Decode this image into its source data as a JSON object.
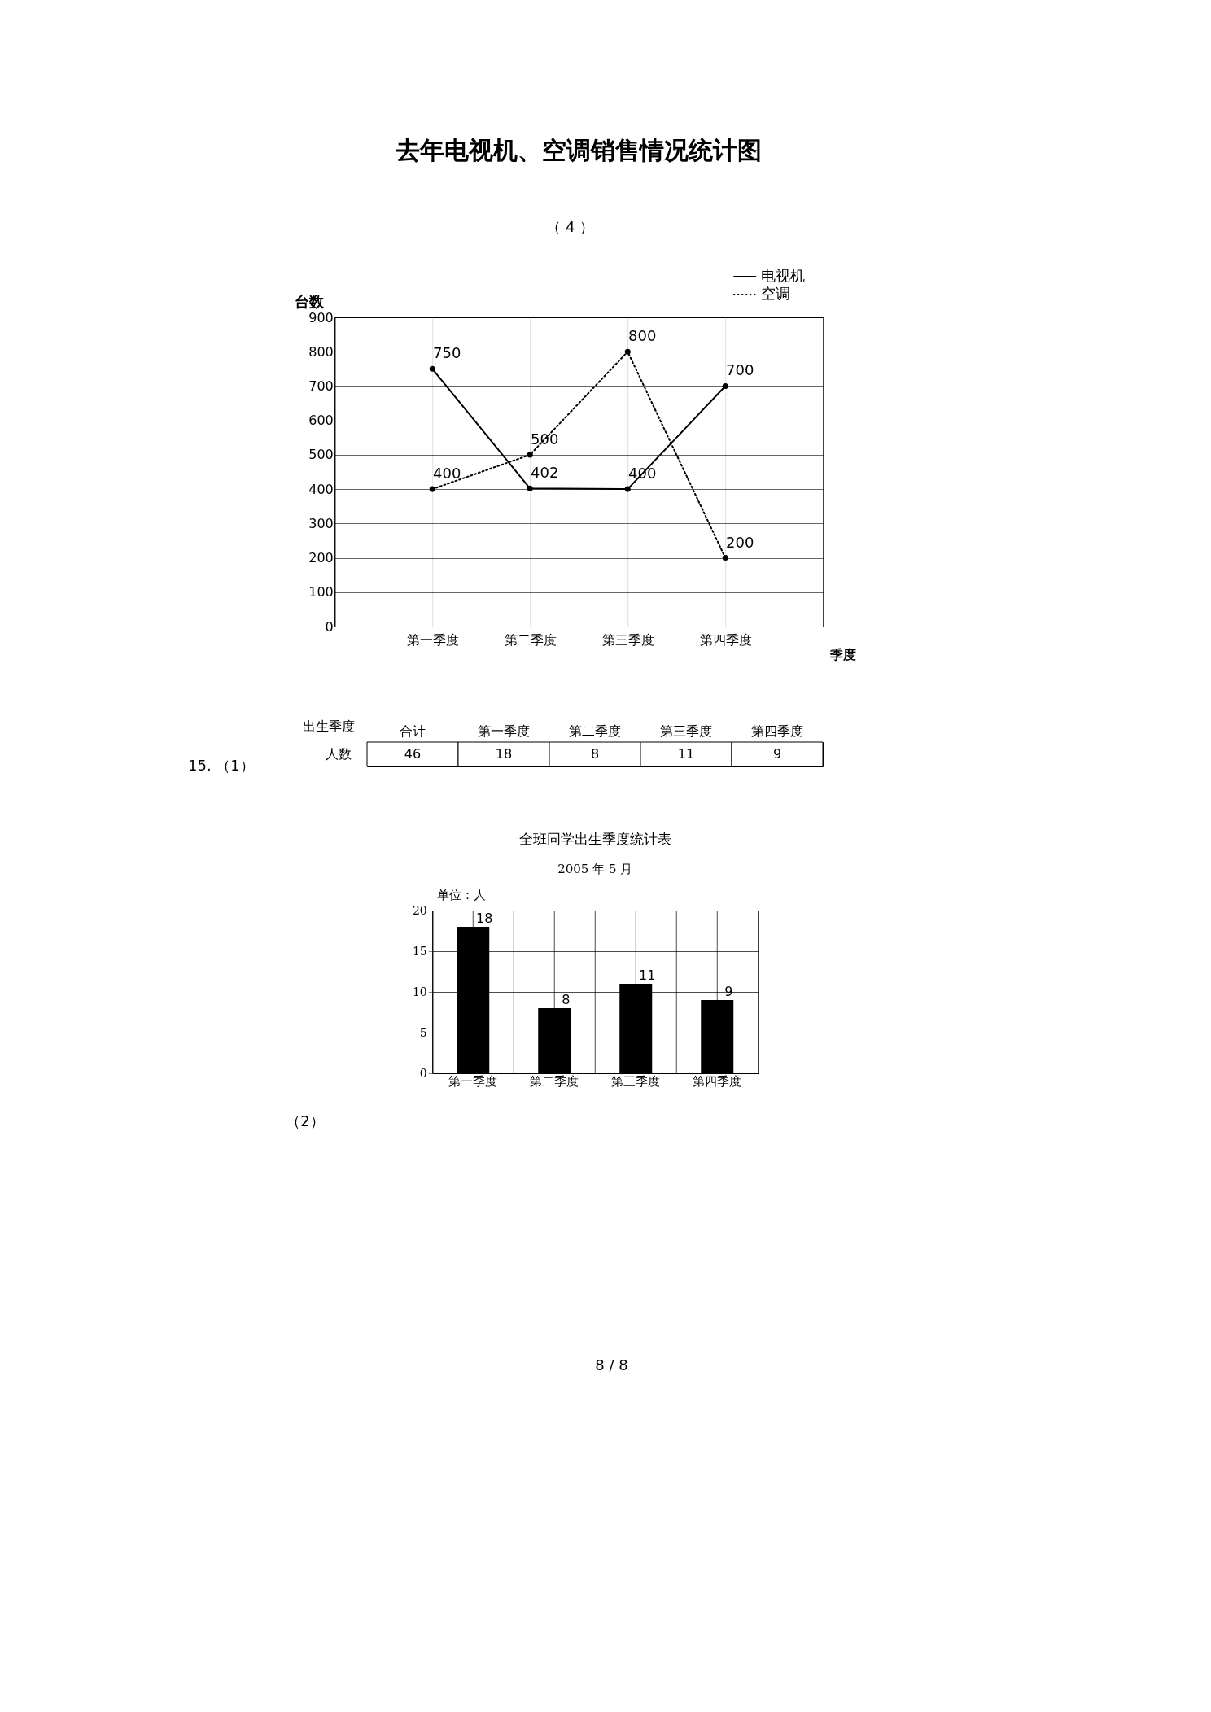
{
  "chart_data": [
    {
      "type": "line",
      "title": "去年电视机、空调销售情况统计图",
      "xlabel": "季度",
      "ylabel": "台数",
      "categories": [
        "第一季度",
        "第二季度",
        "第三季度",
        "第四季度"
      ],
      "series": [
        {
          "name": "电视机",
          "color": "#000000",
          "line_style": "solid",
          "values": [
            750,
            402,
            400,
            700
          ]
        },
        {
          "name": "空调",
          "color": "#000000",
          "line_style": "dotted",
          "values": [
            400,
            500,
            800,
            200
          ]
        }
      ],
      "ylim": [
        0,
        900
      ],
      "yticks": [
        0,
        100,
        200,
        300,
        400,
        500,
        600,
        700,
        800,
        900
      ],
      "grid": true,
      "legend": "top right",
      "marker": "circle",
      "data_labels": true,
      "annotations": [
        "（ 4 ）"
      ]
    },
    {
      "type": "other",
      "xlabel": "出生季度",
      "ylabel": "人数",
      "categories": [
        "合计",
        "第一季度",
        "第二季度",
        "第三季度",
        "第四季度"
      ],
      "values": [
        46,
        18,
        8,
        11,
        9
      ],
      "data_labels": true,
      "annotations": [
        "15. （1）"
      ]
    },
    {
      "type": "bar",
      "title": "全班同学出生季度统计表",
      "subtitle": "2005 年 5 月",
      "ylabel": "单位：人",
      "categories": [
        "第一季度",
        "第二季度",
        "第三季度",
        "第四季度"
      ],
      "values": [
        18,
        8,
        11,
        9
      ],
      "color": "#000000",
      "ylim": [
        0,
        20
      ],
      "yticks": [
        0,
        5,
        10,
        15,
        20
      ],
      "grid": true,
      "data_labels": true,
      "annotations": [
        "（2）",
        "8 / 8"
      ]
    }
  ]
}
